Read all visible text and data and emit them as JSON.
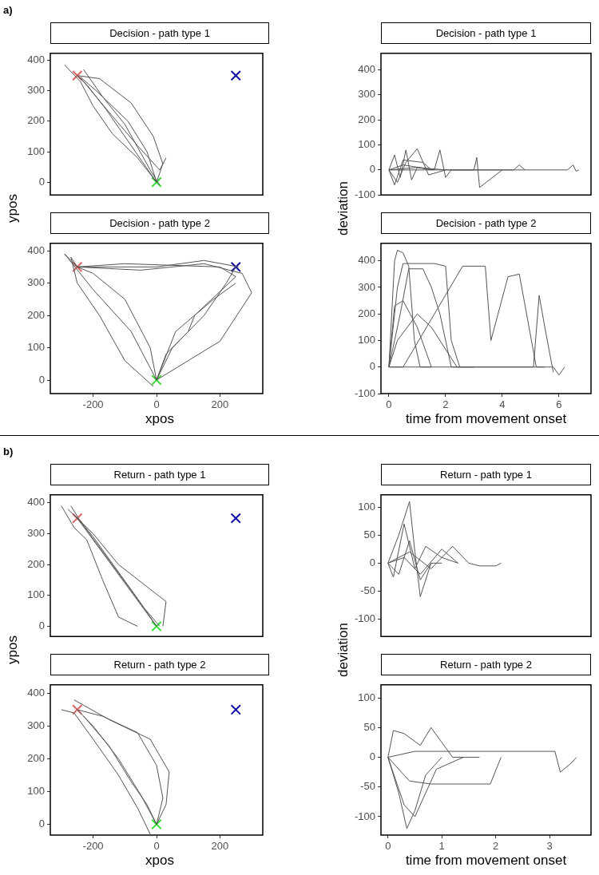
{
  "chart_data": [
    {
      "type": "line",
      "title": "Decision - path type 1",
      "ylabel": "ypos",
      "annotations": [
        "a)"
      ],
      "xlim": [
        -335,
        335
      ],
      "ylim": [
        -42,
        423
      ],
      "xticks": [
        -200,
        0,
        200
      ],
      "yticks": [
        0,
        100,
        200,
        300,
        400
      ],
      "tick_labels": "y",
      "series": [
        {
          "color": "#555555",
          "x": [
            0,
            -40,
            -100,
            -160,
            -220,
            -250
          ],
          "values": [
            0,
            60,
            150,
            240,
            320,
            350
          ]
        },
        {
          "color": "#555555",
          "x": [
            0,
            20,
            -10,
            -80,
            -180,
            -250
          ],
          "values": [
            0,
            60,
            150,
            260,
            340,
            350
          ]
        },
        {
          "color": "#555555",
          "x": [
            0,
            -60,
            -140,
            -200,
            -240,
            -290
          ],
          "values": [
            0,
            80,
            160,
            250,
            330,
            385
          ]
        },
        {
          "color": "#555555",
          "x": [
            30,
            10,
            -60,
            -150,
            -230,
            -250
          ],
          "values": [
            80,
            40,
            120,
            230,
            330,
            350
          ]
        },
        {
          "color": "#555555",
          "x": [
            0,
            -30,
            -90,
            -190,
            -240
          ],
          "values": [
            0,
            100,
            200,
            300,
            345
          ]
        },
        {
          "color": "#555555",
          "x": [
            10,
            -20,
            -100,
            -170,
            -230
          ],
          "values": [
            -10,
            40,
            190,
            280,
            370
          ]
        },
        {
          "type": "scatter",
          "marker": "cross",
          "color": "#e06666",
          "x": [
            -250
          ],
          "values": [
            350
          ]
        },
        {
          "type": "scatter",
          "marker": "cross",
          "color": "#33dd33",
          "x": [
            0
          ],
          "values": [
            0
          ]
        },
        {
          "type": "scatter",
          "marker": "cross",
          "color": "#1111aa",
          "x": [
            250
          ],
          "values": [
            350
          ]
        }
      ]
    },
    {
      "type": "line",
      "title": "Decision - path type 1",
      "ylabel": "deviation",
      "xlim": [
        -0.28,
        7.13
      ],
      "ylim": [
        -100,
        466
      ],
      "xticks": [
        0,
        2,
        4,
        6
      ],
      "yticks": [
        -100,
        0,
        100,
        200,
        300,
        400
      ],
      "tick_labels": "y",
      "series": [
        {
          "color": "#555555",
          "x": [
            0,
            0.2,
            0.4,
            0.6,
            0.8,
            1,
            1.5
          ],
          "values": [
            0,
            60,
            -30,
            80,
            -40,
            10,
            0
          ]
        },
        {
          "color": "#555555",
          "x": [
            0,
            0.3,
            0.6,
            1.0,
            1.4,
            2.0
          ],
          "values": [
            0,
            -50,
            30,
            85,
            -20,
            0
          ]
        },
        {
          "color": "#555555",
          "x": [
            0,
            0.5,
            1.6,
            1.8,
            2.0,
            2.2,
            3.0,
            3.1,
            3.2,
            4.0
          ],
          "values": [
            0,
            20,
            0,
            80,
            -30,
            0,
            0,
            50,
            -70,
            0
          ]
        },
        {
          "color": "#555555",
          "x": [
            0,
            1,
            2,
            4.4,
            4.6,
            4.8
          ],
          "values": [
            0,
            10,
            0,
            0,
            20,
            0
          ]
        },
        {
          "color": "#555555",
          "x": [
            0,
            1,
            3,
            6.3,
            6.5,
            6.6,
            6.7
          ],
          "values": [
            0,
            0,
            0,
            0,
            20,
            -5,
            0
          ]
        },
        {
          "color": "#555555",
          "x": [
            0,
            0.2,
            0.5,
            1.2,
            1.5
          ],
          "values": [
            0,
            -60,
            40,
            30,
            0
          ]
        }
      ]
    },
    {
      "type": "line",
      "title": "Decision - path type 2",
      "xlabel": "xpos",
      "xlim": [
        -335,
        335
      ],
      "ylim": [
        -42,
        423
      ],
      "xticks": [
        -200,
        0,
        200
      ],
      "yticks": [
        0,
        100,
        200,
        300,
        400
      ],
      "series": [
        {
          "color": "#555555",
          "x": [
            0,
            -20,
            -100,
            -200,
            -250
          ],
          "values": [
            0,
            100,
            250,
            330,
            350
          ]
        },
        {
          "color": "#555555",
          "x": [
            0,
            50,
            150,
            220,
            250
          ],
          "values": [
            0,
            100,
            200,
            300,
            350
          ]
        },
        {
          "color": "#555555",
          "x": [
            0,
            60,
            120,
            250,
            200,
            -100,
            -250
          ],
          "values": [
            0,
            150,
            200,
            320,
            350,
            360,
            350
          ]
        },
        {
          "color": "#555555",
          "x": [
            0,
            -80,
            -200,
            -290,
            -250,
            0,
            150,
            260
          ],
          "values": [
            0,
            150,
            280,
            390,
            350,
            350,
            370,
            350
          ]
        },
        {
          "color": "#555555",
          "x": [
            0,
            200,
            300,
            270,
            150,
            -50,
            -250
          ],
          "values": [
            0,
            120,
            270,
            330,
            360,
            340,
            350
          ]
        },
        {
          "color": "#555555",
          "x": [
            -10,
            -100,
            -180,
            -250,
            -270,
            -250
          ],
          "values": [
            -20,
            60,
            200,
            300,
            380,
            350
          ]
        },
        {
          "color": "#555555",
          "x": [
            0,
            30,
            100,
            120,
            180,
            250
          ],
          "values": [
            0,
            80,
            150,
            200,
            250,
            300
          ]
        },
        {
          "type": "scatter",
          "marker": "cross",
          "color": "#e06666",
          "x": [
            -250
          ],
          "values": [
            350
          ]
        },
        {
          "type": "scatter",
          "marker": "cross",
          "color": "#33dd33",
          "x": [
            0
          ],
          "values": [
            0
          ]
        },
        {
          "type": "scatter",
          "marker": "cross",
          "color": "#1111aa",
          "x": [
            250
          ],
          "values": [
            350
          ]
        }
      ]
    },
    {
      "type": "line",
      "title": "Decision - path type 2",
      "xlabel": "time from movement onset",
      "xlim": [
        -0.28,
        7.13
      ],
      "ylim": [
        -100,
        466
      ],
      "xticks": [
        0,
        2,
        4,
        6
      ],
      "yticks": [
        -100,
        0,
        100,
        200,
        300,
        400
      ],
      "series": [
        {
          "color": "#555555",
          "x": [
            0,
            0.2,
            0.3,
            0.5,
            0.7,
            0.9,
            1.1,
            1.5
          ],
          "values": [
            0,
            400,
            440,
            430,
            380,
            100,
            0,
            0
          ]
        },
        {
          "color": "#555555",
          "x": [
            0,
            0.3,
            0.5,
            1.0,
            1.6,
            2.0,
            2.2,
            2.5
          ],
          "values": [
            0,
            300,
            390,
            390,
            390,
            380,
            100,
            0
          ]
        },
        {
          "color": "#555555",
          "x": [
            0,
            0.4,
            0.7,
            1.2,
            1.5,
            1.8,
            2.2,
            3.0
          ],
          "values": [
            0,
            200,
            370,
            370,
            300,
            200,
            0,
            0
          ]
        },
        {
          "color": "#555555",
          "x": [
            0,
            0.5,
            2.6,
            3.4,
            3.6,
            4.2,
            4.6,
            5.2,
            5.5
          ],
          "values": [
            0,
            0,
            380,
            380,
            100,
            340,
            350,
            0,
            0
          ]
        },
        {
          "color": "#555555",
          "x": [
            0,
            0.3,
            1,
            1.5,
            2.4,
            3.5,
            4.5,
            5.8,
            6.0,
            6.2
          ],
          "values": [
            0,
            100,
            200,
            150,
            0,
            0,
            0,
            0,
            -30,
            0
          ]
        },
        {
          "color": "#555555",
          "x": [
            0,
            0.2,
            0.5,
            1,
            1.5
          ],
          "values": [
            0,
            230,
            250,
            150,
            0
          ]
        },
        {
          "color": "#555555",
          "x": [
            0,
            2,
            4,
            5.1,
            5.3,
            5.5,
            5.8
          ],
          "values": [
            0,
            0,
            0,
            0,
            270,
            150,
            -20
          ]
        }
      ]
    },
    {
      "type": "line",
      "title": "Return - path type 1",
      "ylabel": "ypos",
      "annotations": [
        "b)"
      ],
      "xlim": [
        -335,
        335
      ],
      "ylim": [
        -33,
        426
      ],
      "xticks": [
        -200,
        0,
        200
      ],
      "yticks": [
        0,
        100,
        200,
        300,
        400
      ],
      "tick_labels": "y",
      "series": [
        {
          "color": "#555555",
          "x": [
            0,
            -50,
            -100,
            -150,
            -200,
            -250
          ],
          "values": [
            0,
            70,
            140,
            210,
            280,
            350
          ]
        },
        {
          "color": "#555555",
          "x": [
            10,
            -40,
            -90,
            -140,
            -190,
            -240,
            -270
          ],
          "values": [
            0,
            60,
            130,
            200,
            270,
            340,
            390
          ]
        },
        {
          "color": "#555555",
          "x": [
            20,
            30,
            -20,
            -120,
            -200,
            -260
          ],
          "values": [
            0,
            80,
            120,
            200,
            300,
            360
          ]
        },
        {
          "color": "#555555",
          "x": [
            -60,
            -120,
            -170,
            -220,
            -260,
            -300
          ],
          "values": [
            0,
            30,
            150,
            280,
            320,
            390
          ]
        },
        {
          "color": "#555555",
          "x": [
            0,
            -60,
            -130,
            -200,
            -240,
            -280
          ],
          "values": [
            0,
            90,
            190,
            290,
            340,
            380
          ]
        },
        {
          "type": "scatter",
          "marker": "cross",
          "color": "#e06666",
          "x": [
            -250
          ],
          "values": [
            350
          ]
        },
        {
          "type": "scatter",
          "marker": "cross",
          "color": "#33dd33",
          "x": [
            0
          ],
          "values": [
            0
          ]
        },
        {
          "type": "scatter",
          "marker": "cross",
          "color": "#1111aa",
          "x": [
            250
          ],
          "values": [
            350
          ]
        }
      ]
    },
    {
      "type": "line",
      "title": "Return - path type 1",
      "ylabel": "deviation",
      "xlim": [
        -0.13,
        3.77
      ],
      "ylim": [
        -131,
        122
      ],
      "xticks": [
        0,
        1,
        2,
        3
      ],
      "yticks": [
        -100,
        -50,
        0,
        50,
        100
      ],
      "tick_labels": "y",
      "series": [
        {
          "color": "#555555",
          "x": [
            0,
            0.2,
            0.4,
            0.5,
            0.6,
            0.8,
            1
          ],
          "values": [
            0,
            50,
            110,
            20,
            -60,
            0,
            0
          ]
        },
        {
          "color": "#555555",
          "x": [
            0,
            0.1,
            0.3,
            0.5,
            0.7,
            1.0,
            1.3
          ],
          "values": [
            0,
            -25,
            70,
            -10,
            30,
            10,
            0
          ]
        },
        {
          "color": "#555555",
          "x": [
            0,
            0.4,
            0.8,
            1.2,
            1.5,
            1.7,
            2.0,
            2.1
          ],
          "values": [
            0,
            20,
            -10,
            30,
            0,
            -5,
            -5,
            0
          ]
        },
        {
          "color": "#555555",
          "x": [
            0,
            0.2,
            0.4,
            0.6,
            0.8
          ],
          "values": [
            0,
            -20,
            40,
            -30,
            0
          ]
        },
        {
          "color": "#555555",
          "x": [
            0,
            0.3,
            0.6,
            1.0,
            1.3
          ],
          "values": [
            0,
            10,
            -20,
            25,
            0
          ]
        }
      ]
    },
    {
      "type": "line",
      "title": "Return - path type 2",
      "xlabel": "xpos",
      "xlim": [
        -335,
        335
      ],
      "ylim": [
        -33,
        426
      ],
      "xticks": [
        -200,
        0,
        200
      ],
      "yticks": [
        0,
        100,
        200,
        300,
        400
      ],
      "series": [
        {
          "color": "#555555",
          "x": [
            0,
            -50,
            -120,
            -200,
            -250
          ],
          "values": [
            0,
            90,
            200,
            300,
            350
          ]
        },
        {
          "color": "#555555",
          "x": [
            0,
            20,
            0,
            -60,
            -170,
            -250
          ],
          "values": [
            0,
            80,
            180,
            280,
            330,
            350
          ]
        },
        {
          "color": "#555555",
          "x": [
            0,
            30,
            40,
            -20,
            -150,
            -260
          ],
          "values": [
            0,
            60,
            160,
            260,
            320,
            380
          ]
        },
        {
          "color": "#555555",
          "x": [
            -20,
            -60,
            -120,
            -200,
            -260,
            -300
          ],
          "values": [
            -30,
            50,
            150,
            260,
            340,
            350
          ]
        },
        {
          "color": "#555555",
          "x": [
            0,
            -30,
            -80,
            -150,
            -230
          ],
          "values": [
            0,
            60,
            130,
            240,
            330
          ]
        },
        {
          "type": "scatter",
          "marker": "cross",
          "color": "#e06666",
          "x": [
            -250
          ],
          "values": [
            350
          ]
        },
        {
          "type": "scatter",
          "marker": "cross",
          "color": "#33dd33",
          "x": [
            0
          ],
          "values": [
            0
          ]
        },
        {
          "type": "scatter",
          "marker": "cross",
          "color": "#1111aa",
          "x": [
            250
          ],
          "values": [
            350
          ]
        }
      ]
    },
    {
      "type": "line",
      "title": "Return - path type 2",
      "xlabel": "time from movement onset",
      "xlim": [
        -0.13,
        3.77
      ],
      "ylim": [
        -131,
        122
      ],
      "xticks": [
        0,
        1,
        2,
        3
      ],
      "yticks": [
        -100,
        -50,
        0,
        50,
        100
      ],
      "series": [
        {
          "color": "#555555",
          "x": [
            0,
            0.2,
            0.35,
            0.5,
            0.7,
            1
          ],
          "values": [
            0,
            -60,
            -120,
            -90,
            -30,
            0
          ]
        },
        {
          "color": "#555555",
          "x": [
            0,
            0.1,
            0.3,
            0.6,
            0.8,
            1.2,
            1.7
          ],
          "values": [
            0,
            45,
            40,
            20,
            50,
            0,
            0
          ]
        },
        {
          "color": "#555555",
          "x": [
            0,
            0.5,
            1,
            3.1,
            3.2,
            3.4,
            3.5
          ],
          "values": [
            0,
            10,
            10,
            10,
            -25,
            -10,
            0
          ]
        },
        {
          "color": "#555555",
          "x": [
            0,
            0.4,
            0.8,
            1.9,
            2.1
          ],
          "values": [
            0,
            -40,
            -45,
            -45,
            0
          ]
        },
        {
          "color": "#555555",
          "x": [
            0,
            0.3,
            0.5,
            0.9,
            1.4
          ],
          "values": [
            0,
            -80,
            -100,
            -20,
            0
          ]
        }
      ]
    }
  ]
}
